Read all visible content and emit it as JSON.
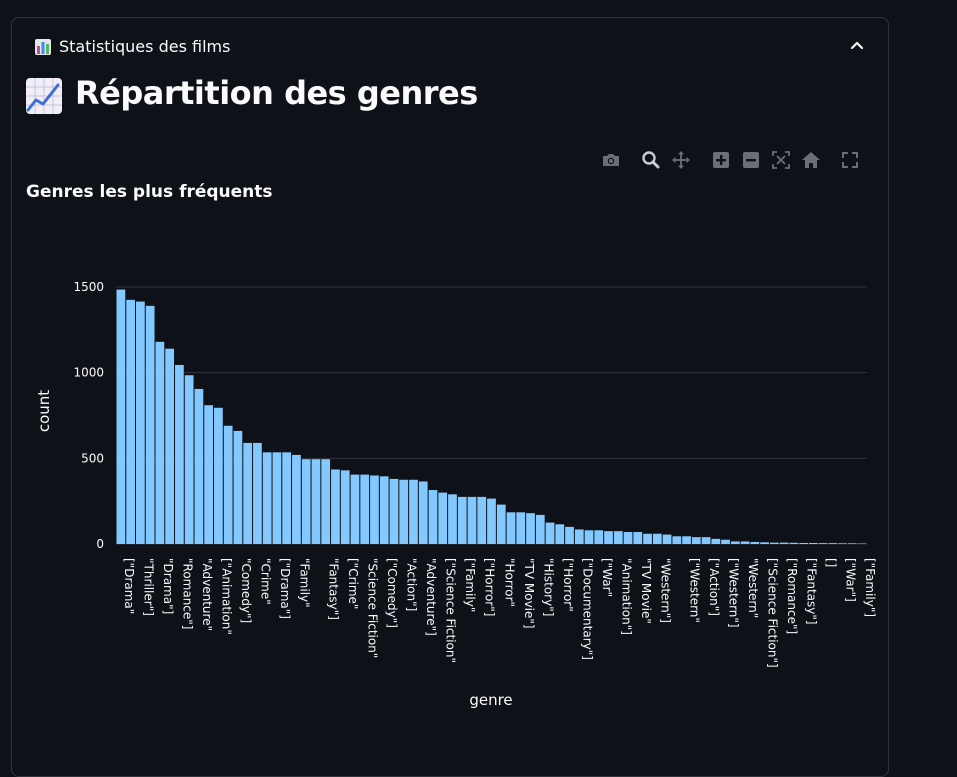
{
  "expander": {
    "title": "Statistiques des films",
    "icon": "bar-chart-icon",
    "state_icon": "chevron-up-icon"
  },
  "section": {
    "title": "Répartition des genres",
    "icon": "chart-increasing-icon"
  },
  "modebar": {
    "buttons": [
      "camera-icon",
      "zoom-icon",
      "pan-icon",
      "zoom-in-icon",
      "zoom-out-icon",
      "autoscale-icon",
      "reset-axes-icon",
      "fullscreen-icon"
    ]
  },
  "colors": {
    "background": "#0e1117",
    "bar": "#83c9ff",
    "grid": "#31333f",
    "border": "#30333b"
  },
  "chart_data": {
    "type": "bar",
    "title": "Genres les plus fréquents",
    "xlabel": "genre",
    "ylabel": "count",
    "ylim": [
      0,
      1500
    ],
    "yticks": [
      0,
      500,
      1000,
      1500
    ],
    "grid": true,
    "x_tick_labels": [
      "[\"Drama\"",
      "\"Thriller\"]",
      "\"Drama\"]",
      "\"Romance\"]",
      "\"Adventure\"",
      "[\"Animation\"",
      "\"Comedy\"]",
      "\"Crime\"",
      "[\"Drama\"]",
      "\"Family\"",
      "\"Fantasy\"]",
      "[\"Crime\"",
      "\"Science Fiction\"",
      "[\"Comedy\"]",
      "\"Action\"]",
      "\"Adventure\"]",
      "[\"Science Fiction\"",
      "[\"Family\"",
      "[\"Horror\"]",
      "\"Horror\"",
      "\"TV Movie\"]",
      "\"History\"]",
      "[\"Horror\"",
      "[\"Documentary\"]",
      "[\"War\"",
      "\"Animation\"]",
      "\"TV Movie\"",
      "\"Western\"]",
      "[\"Western\"",
      "[\"Action\"]",
      "[\"Western\"]",
      "\"Western\"",
      "[\"Science Fiction\"]",
      "[\"Romance\"]",
      "[\"Fantasy\"]",
      "[]",
      "[\"War\"]",
      "[\"Family\"]"
    ],
    "values": [
      1485,
      1425,
      1415,
      1390,
      1180,
      1140,
      1045,
      985,
      905,
      810,
      795,
      690,
      660,
      590,
      590,
      535,
      535,
      535,
      520,
      495,
      495,
      495,
      435,
      430,
      405,
      405,
      400,
      395,
      380,
      375,
      375,
      365,
      315,
      300,
      290,
      275,
      275,
      275,
      265,
      230,
      185,
      185,
      180,
      170,
      125,
      115,
      100,
      85,
      80,
      80,
      75,
      75,
      70,
      70,
      60,
      60,
      55,
      45,
      45,
      40,
      40,
      30,
      25,
      15,
      15,
      12,
      10,
      8,
      8,
      7,
      6,
      6,
      5,
      5,
      4,
      4,
      3
    ]
  }
}
